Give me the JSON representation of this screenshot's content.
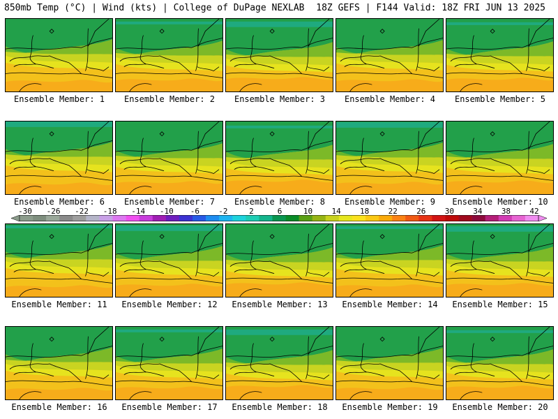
{
  "header": {
    "left": "850mb Temp (°C) | Wind (kts) | College of DuPage NEXLAB",
    "right": "18Z GEFS | F144 Valid: 18Z FRI JUN 13 2025"
  },
  "members": [
    {
      "label": "Ensemble Member: 1"
    },
    {
      "label": "Ensemble Member: 2"
    },
    {
      "label": "Ensemble Member: 3"
    },
    {
      "label": "Ensemble Member: 4"
    },
    {
      "label": "Ensemble Member: 5"
    },
    {
      "label": "Ensemble Member: 6"
    },
    {
      "label": "Ensemble Member: 7"
    },
    {
      "label": "Ensemble Member: 8"
    },
    {
      "label": "Ensemble Member: 9"
    },
    {
      "label": "Ensemble Member: 10"
    },
    {
      "label": "Ensemble Member: 11"
    },
    {
      "label": "Ensemble Member: 12"
    },
    {
      "label": "Ensemble Member: 13"
    },
    {
      "label": "Ensemble Member: 14"
    },
    {
      "label": "Ensemble Member: 15"
    },
    {
      "label": "Ensemble Member: 16"
    },
    {
      "label": "Ensemble Member: 17"
    },
    {
      "label": "Ensemble Member: 18"
    },
    {
      "label": "Ensemble Member: 19"
    },
    {
      "label": "Ensemble Member: 20"
    }
  ],
  "colorbar": {
    "ticks": [
      "-30",
      "-26",
      "-22",
      "-18",
      "-14",
      "-10",
      "-6",
      "-2",
      "2",
      "6",
      "10",
      "14",
      "18",
      "22",
      "26",
      "30",
      "34",
      "38",
      "42"
    ],
    "colors": [
      "#8c9c8c",
      "#7e8e7e",
      "#9aa89a",
      "#8a8a8a",
      "#9e9e9e",
      "#b4b4c8",
      "#c8a0e6",
      "#dc78f0",
      "#f050f0",
      "#c83cdc",
      "#a01eb4",
      "#6e1ebe",
      "#3c32d2",
      "#285ae6",
      "#1e8cf0",
      "#1eb4f0",
      "#1ed2dc",
      "#1ecdb4",
      "#14b48c",
      "#0a9650",
      "#0a8c28",
      "#5aa014",
      "#96b414",
      "#c8d21e",
      "#e6e61e",
      "#fae11e",
      "#fac814",
      "#faaa0a",
      "#fa8214",
      "#f05a14",
      "#e63214",
      "#d21414",
      "#be0a0a",
      "#a00a1e",
      "#8c0a3c",
      "#b41e78",
      "#d23cb4",
      "#e664d2",
      "#f08cf0"
    ]
  }
}
